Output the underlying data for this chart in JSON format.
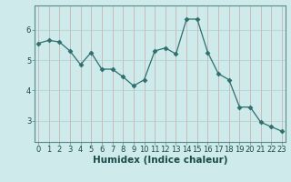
{
  "x": [
    0,
    1,
    2,
    3,
    4,
    5,
    6,
    7,
    8,
    9,
    10,
    11,
    12,
    13,
    14,
    15,
    16,
    17,
    18,
    19,
    20,
    21,
    22,
    23
  ],
  "y": [
    5.55,
    5.65,
    5.6,
    5.3,
    4.85,
    5.25,
    4.7,
    4.7,
    4.45,
    4.15,
    4.35,
    5.3,
    5.4,
    5.2,
    6.35,
    6.35,
    5.25,
    4.55,
    4.35,
    3.45,
    3.45,
    2.95,
    2.8,
    2.65
  ],
  "line_color": "#2d6e6e",
  "marker": "D",
  "marker_size": 2.5,
  "bg_color": "#ceeaea",
  "grid_color": "#b0d0d0",
  "grid_color_major": "#c8a0a0",
  "xlabel": "Humidex (Indice chaleur)",
  "xlabel_weight": "bold",
  "yticks": [
    3,
    4,
    5,
    6
  ],
  "xticks": [
    0,
    1,
    2,
    3,
    4,
    5,
    6,
    7,
    8,
    9,
    10,
    11,
    12,
    13,
    14,
    15,
    16,
    17,
    18,
    19,
    20,
    21,
    22,
    23
  ],
  "ylim": [
    2.3,
    6.8
  ],
  "xlim": [
    -0.3,
    23.3
  ],
  "tick_label_size": 6,
  "xlabel_size": 7.5
}
